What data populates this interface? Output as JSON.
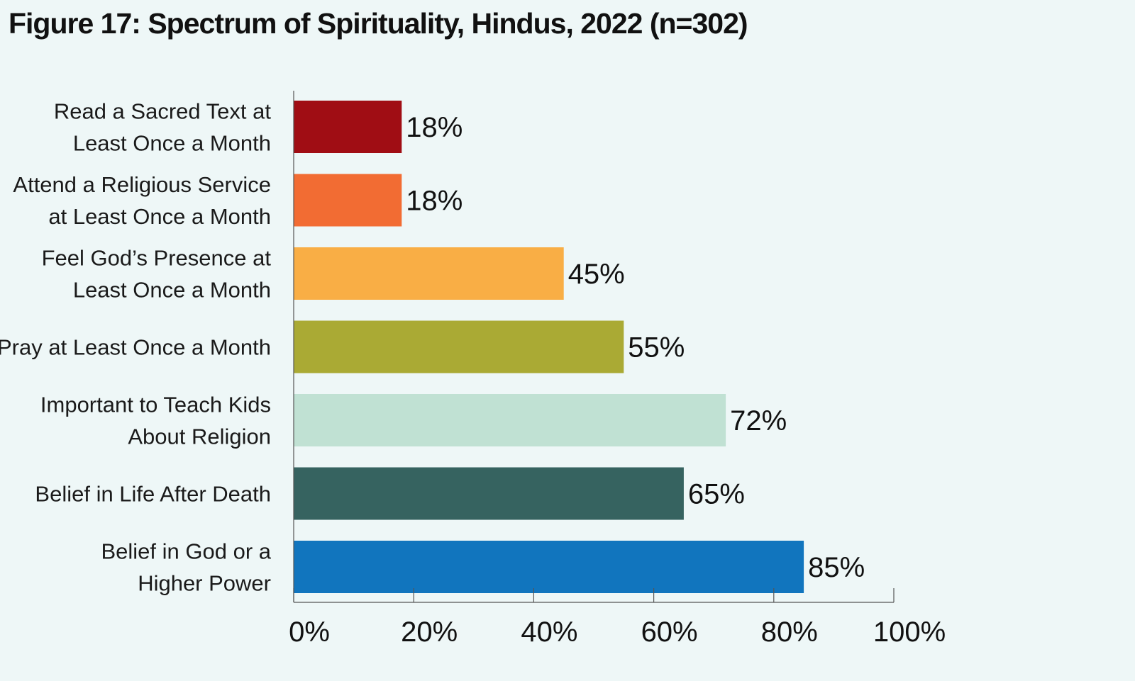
{
  "chart_data": {
    "type": "bar",
    "orientation": "horizontal",
    "title": "Figure 17: Spectrum of Spirituality, Hindus, 2022 (n=302)",
    "categories": [
      [
        "Read a Sacred Text at",
        "Least Once a Month"
      ],
      [
        "Attend a Religious Service",
        "at Least Once a Month"
      ],
      [
        "Feel God’s Presence at",
        "Least Once a Month"
      ],
      [
        "Pray at Least Once a Month"
      ],
      [
        "Important to Teach Kids",
        "About Religion"
      ],
      [
        "Belief in Life After Death"
      ],
      [
        "Belief in God or a",
        "Higher Power"
      ]
    ],
    "values": [
      18,
      18,
      45,
      55,
      72,
      65,
      85
    ],
    "value_labels": [
      "18%",
      "18%",
      "45%",
      "55%",
      "72%",
      "65%",
      "85%"
    ],
    "colors": [
      "#a00d14",
      "#f26c33",
      "#f9ae45",
      "#aaaa34",
      "#c0e1d3",
      "#366360",
      "#1175be"
    ],
    "xlim": [
      0,
      100
    ],
    "xticks": [
      0,
      20,
      40,
      60,
      80,
      100
    ],
    "xtick_labels": [
      "0%",
      "20%",
      "40%",
      "60%",
      "80%",
      "100%"
    ],
    "xlabel": "",
    "ylabel": "",
    "grid": false,
    "legend": "none"
  }
}
